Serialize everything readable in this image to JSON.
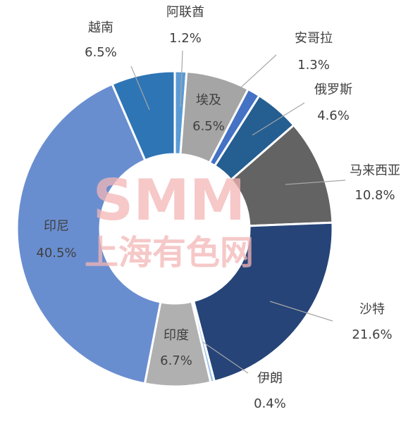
{
  "chart_data": {
    "type": "donut",
    "watermark": {
      "logo": "SMM",
      "name": "上海有色网"
    },
    "categories": [
      "阿联酋",
      "埃及",
      "安哥拉",
      "俄罗斯",
      "马来西亚",
      "沙特",
      "伊朗",
      "印度",
      "印尼",
      "越南"
    ],
    "values": [
      1.2,
      6.5,
      1.3,
      4.6,
      10.8,
      21.6,
      0.4,
      6.7,
      40.5,
      6.5
    ],
    "value_labels": [
      "1.2%",
      "6.5%",
      "1.3%",
      "4.6%",
      "10.8%",
      "21.6%",
      "0.4%",
      "6.7%",
      "40.5%",
      "6.5%"
    ],
    "colors": [
      "#5b9bd5",
      "#a5a5a5",
      "#4472c4",
      "#255e91",
      "#636363",
      "#264478",
      "#9dc3e6",
      "#b0b0b0",
      "#698ed0",
      "#2e75b6"
    ]
  }
}
